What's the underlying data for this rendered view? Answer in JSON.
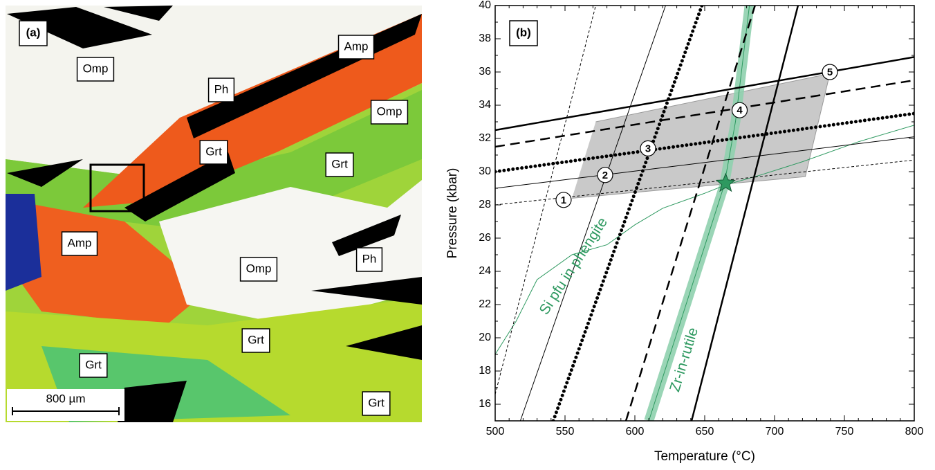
{
  "panel_a": {
    "panel_label": "(a)",
    "labels": [
      "Amp",
      "Omp",
      "Ph",
      "Omp",
      "Grt",
      "Grt",
      "Amp",
      "Ph",
      "Omp",
      "Grt",
      "Grt",
      "Grt"
    ],
    "scale_bar": "800 µm"
  },
  "chart_data": {
    "type": "line",
    "panel_label": "(b)",
    "xlabel": "Temperature (°C)",
    "ylabel": "Pressure (kbar)",
    "xlim": [
      500,
      800
    ],
    "ylim": [
      15,
      40
    ],
    "xticks": [
      500,
      550,
      600,
      650,
      700,
      750,
      800
    ],
    "yticks": [
      16,
      18,
      20,
      22,
      24,
      26,
      28,
      30,
      32,
      34,
      36,
      38,
      40
    ],
    "xminorticks": [
      510,
      520,
      530,
      540,
      560,
      570,
      580,
      590,
      610,
      620,
      630,
      640,
      660,
      670,
      680,
      690,
      710,
      720,
      730,
      740,
      760,
      770,
      780,
      790
    ],
    "yminorticks": [
      15,
      17,
      19,
      21,
      23,
      25,
      27,
      29,
      31,
      33,
      35,
      37,
      39
    ],
    "series": [
      {
        "kind": "area",
        "color": "#c9c9c9",
        "x": [
          555,
          722,
          739.6,
          572
        ],
        "y": [
          28.4,
          29.7,
          35.9,
          33
        ]
      },
      {
        "kind": "band",
        "color": "#8fd0ae",
        "x": [
          610,
          664,
          672,
          682
        ],
        "y": [
          15,
          29.2,
          33,
          40
        ]
      },
      {
        "kind": "line",
        "style": "solid",
        "width": 1,
        "color": "#2e9960",
        "x": [
          610,
          664,
          672,
          682
        ],
        "y": [
          15,
          29.2,
          33,
          40
        ]
      },
      {
        "kind": "line",
        "style": "solid",
        "width": 1,
        "color": "#2e9960",
        "x": [
          500,
          515,
          530,
          555,
          580,
          600,
          620,
          650,
          665,
          690,
          720,
          760,
          800
        ],
        "y": [
          19,
          21,
          23.5,
          25,
          25.6,
          26.8,
          27.8,
          28.7,
          29.2,
          29.8,
          30.6,
          31.8,
          32.8
        ]
      },
      {
        "kind": "line",
        "style": "dashed-thin",
        "width": 1,
        "color": "#000000",
        "x": [
          500,
          800
        ],
        "y": [
          28.0,
          30.7
        ]
      },
      {
        "kind": "line",
        "style": "dashed-thin",
        "width": 1,
        "color": "#000000",
        "x": [
          500,
          572
        ],
        "y": [
          16.6,
          40
        ]
      },
      {
        "kind": "line",
        "style": "solid",
        "width": 1,
        "color": "#000000",
        "x": [
          500,
          800
        ],
        "y": [
          29.0,
          32.1
        ]
      },
      {
        "kind": "line",
        "style": "solid",
        "width": 1,
        "color": "#000000",
        "x": [
          518,
          622
        ],
        "y": [
          15,
          40
        ]
      },
      {
        "kind": "line",
        "style": "dotted",
        "width": 5,
        "color": "#000000",
        "x": [
          500,
          800
        ],
        "y": [
          30.0,
          33.5
        ]
      },
      {
        "kind": "line",
        "style": "dotted",
        "width": 5,
        "color": "#000000",
        "x": [
          541.6,
          648
        ],
        "y": [
          15,
          40
        ]
      },
      {
        "kind": "line",
        "style": "dashed",
        "width": 2.5,
        "color": "#000000",
        "x": [
          500,
          800
        ],
        "y": [
          31.5,
          35.5
        ]
      },
      {
        "kind": "line",
        "style": "dashed",
        "width": 2.5,
        "color": "#000000",
        "x": [
          593.6,
          686
        ],
        "y": [
          15,
          40
        ]
      },
      {
        "kind": "line",
        "style": "solid",
        "width": 2.5,
        "color": "#000000",
        "x": [
          500,
          800
        ],
        "y": [
          32.5,
          36.9
        ]
      },
      {
        "kind": "line",
        "style": "solid",
        "width": 2.5,
        "color": "#000000",
        "x": [
          640.6,
          716.8
        ],
        "y": [
          15,
          40
        ]
      }
    ],
    "markers": [
      {
        "label": 1,
        "x": 549,
        "y": 28.3
      },
      {
        "label": 2,
        "x": 578.7,
        "y": 29.8
      },
      {
        "label": 3,
        "x": 609.4,
        "y": 31.4
      },
      {
        "label": 4,
        "x": 675,
        "y": 33.7
      },
      {
        "label": 5,
        "x": 739.6,
        "y": 36.0
      }
    ],
    "star": {
      "x": 665,
      "y": 29.3,
      "color": "#2e9960"
    },
    "annotations": [
      {
        "text": "Si pfu in phengite",
        "color": "#2e9960"
      },
      {
        "text": "Zr-in-rutile",
        "color": "#2e9960"
      }
    ]
  }
}
